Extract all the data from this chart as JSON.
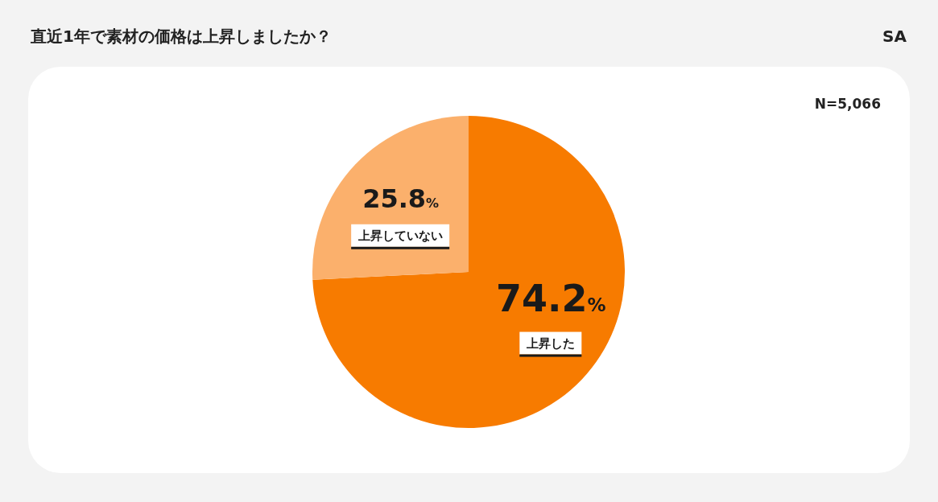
{
  "chart_data": {
    "type": "pie",
    "title": "直近1年で素材の価格は上昇しましたか？",
    "annotations": [
      "SA",
      "N=5,066"
    ],
    "categories": [
      "上昇した",
      "上昇していない"
    ],
    "values": [
      74.2,
      25.8
    ],
    "colors": [
      "#f77b00",
      "#fbb06c"
    ],
    "value_labels": [
      "74.2%",
      "25.8%"
    ]
  }
}
